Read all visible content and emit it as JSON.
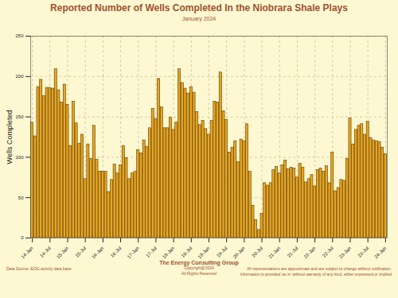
{
  "chart_data": {
    "type": "bar",
    "title": "Reported Number of Wells Completed In the Niobrara Shale Plays",
    "subtitle": "January 2024",
    "y_label": "Wells Completed",
    "footer_center": [
      "The Energy Consulting Group",
      "Copyright@2024",
      "All Rights Reserved"
    ],
    "footer_left": "Data Source: EOG activity data base",
    "footer_right": [
      "All representations are approximate and are subject to change without notification.",
      "Information is provided 'as is' without warranty of any kind, either expressed or implied"
    ],
    "categories": [
      "14-Jan",
      null,
      null,
      null,
      null,
      null,
      "14-Jul",
      null,
      null,
      null,
      null,
      null,
      "15-Jan",
      null,
      null,
      null,
      null,
      null,
      "15-Jul",
      null,
      null,
      null,
      null,
      null,
      "16-Jan",
      null,
      null,
      null,
      null,
      null,
      "16-Jul",
      null,
      null,
      null,
      null,
      null,
      "17-Jan",
      null,
      null,
      null,
      null,
      null,
      "17-Jul",
      null,
      null,
      null,
      null,
      null,
      "18-Jan",
      null,
      null,
      null,
      null,
      null,
      "18-Jul",
      null,
      null,
      null,
      null,
      null,
      "19-Jan",
      null,
      null,
      null,
      null,
      null,
      "19-Jul",
      null,
      null,
      null,
      null,
      null,
      "20-Jan",
      null,
      null,
      null,
      null,
      null,
      "20-Jul",
      null,
      null,
      null,
      null,
      null,
      "21-Jan",
      null,
      null,
      null,
      null,
      null,
      "21-Jul",
      null,
      null,
      null,
      null,
      null,
      "22-Jan",
      null,
      null,
      null,
      null,
      null,
      "22-Jul",
      null,
      null,
      null,
      null,
      null,
      "23-Jan",
      null,
      null,
      null,
      null,
      null,
      "23-Jul",
      null,
      null,
      null,
      null,
      null,
      "24-Jan"
    ],
    "values": [
      143,
      126,
      187,
      196,
      176,
      186,
      186,
      185,
      209,
      183,
      168,
      190,
      165,
      114,
      169,
      142,
      117,
      128,
      73,
      116,
      98,
      139,
      97,
      82,
      82,
      82,
      57,
      72,
      91,
      80,
      90,
      114,
      99,
      73,
      80,
      82,
      109,
      105,
      121,
      113,
      136,
      160,
      147,
      197,
      162,
      136,
      136,
      149,
      134,
      143,
      209,
      192,
      185,
      179,
      187,
      180,
      156,
      140,
      145,
      135,
      128,
      145,
      169,
      168,
      205,
      157,
      146,
      106,
      112,
      120,
      94,
      122,
      120,
      141,
      82,
      40,
      22,
      10,
      30,
      68,
      65,
      68,
      84,
      88,
      80,
      90,
      96,
      85,
      87,
      86,
      75,
      92,
      87,
      69,
      73,
      78,
      64,
      84,
      86,
      82,
      89,
      68,
      106,
      58,
      62,
      72,
      71,
      98,
      148,
      116,
      134,
      139,
      141,
      128,
      144,
      124,
      121,
      120,
      119,
      112,
      104
    ],
    "color": "#e8a520",
    "ylim": [
      0,
      250
    ],
    "yticks": [
      0,
      50,
      100,
      150,
      200,
      250
    ],
    "grid": true
  }
}
